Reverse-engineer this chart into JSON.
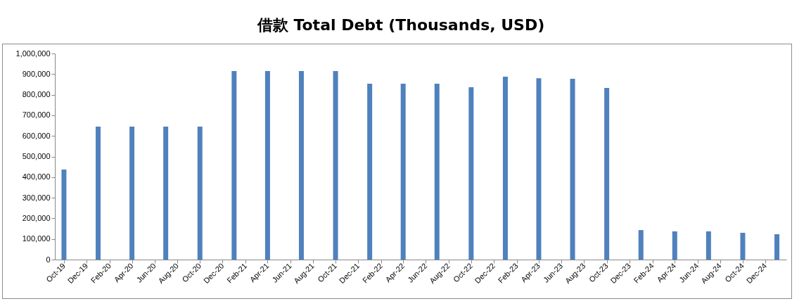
{
  "chart_data": {
    "type": "bar",
    "title": "借款 Total Debt (Thousands, USD)",
    "x": [
      "2019-10",
      "2020-01",
      "2020-04",
      "2020-07",
      "2020-10",
      "2021-01",
      "2021-04",
      "2021-07",
      "2021-10",
      "2022-01",
      "2022-04",
      "2022-07",
      "2022-10",
      "2023-01",
      "2023-04",
      "2023-07",
      "2023-10",
      "2024-01",
      "2024-04",
      "2024-07",
      "2024-10",
      "2025-01"
    ],
    "values": [
      437000,
      645000,
      645000,
      645000,
      645000,
      915000,
      915000,
      915000,
      915000,
      853000,
      853000,
      853000,
      836000,
      887000,
      880000,
      877000,
      833000,
      143000,
      137000,
      137000,
      130000,
      123000
    ],
    "color": "#4f81bd",
    "xlim": [
      "2019-09-16",
      "2025-01-17"
    ],
    "xticks": [
      {
        "value": "2019-10",
        "label": "Oct-19"
      },
      {
        "value": "2019-12",
        "label": "Dec-19"
      },
      {
        "value": "2020-02",
        "label": "Feb-20"
      },
      {
        "value": "2020-04",
        "label": "Apr-20"
      },
      {
        "value": "2020-06",
        "label": "Jun-20"
      },
      {
        "value": "2020-08",
        "label": "Aug-20"
      },
      {
        "value": "2020-10",
        "label": "Oct-20"
      },
      {
        "value": "2020-12",
        "label": "Dec-20"
      },
      {
        "value": "2021-02",
        "label": "Feb-21"
      },
      {
        "value": "2021-04",
        "label": "Apr-21"
      },
      {
        "value": "2021-06",
        "label": "Jun-21"
      },
      {
        "value": "2021-08",
        "label": "Aug-21"
      },
      {
        "value": "2021-10",
        "label": "Oct-21"
      },
      {
        "value": "2021-12",
        "label": "Dec-21"
      },
      {
        "value": "2022-02",
        "label": "Feb-22"
      },
      {
        "value": "2022-04",
        "label": "Apr-22"
      },
      {
        "value": "2022-06",
        "label": "Jun-22"
      },
      {
        "value": "2022-08",
        "label": "Aug-22"
      },
      {
        "value": "2022-10",
        "label": "Oct-22"
      },
      {
        "value": "2022-12",
        "label": "Dec-22"
      },
      {
        "value": "2023-02",
        "label": "Feb-23"
      },
      {
        "value": "2023-04",
        "label": "Apr-23"
      },
      {
        "value": "2023-06",
        "label": "Jun-23"
      },
      {
        "value": "2023-08",
        "label": "Aug-23"
      },
      {
        "value": "2023-10",
        "label": "Oct-23"
      },
      {
        "value": "2023-12",
        "label": "Dec-23"
      },
      {
        "value": "2024-02",
        "label": "Feb-24"
      },
      {
        "value": "2024-04",
        "label": "Apr-24"
      },
      {
        "value": "2024-06",
        "label": "Jun-24"
      },
      {
        "value": "2024-08",
        "label": "Aug-24"
      },
      {
        "value": "2024-10",
        "label": "Oct-24"
      },
      {
        "value": "2024-12",
        "label": "Dec-24"
      }
    ],
    "ylim": [
      0,
      1000000
    ],
    "yticks": [
      0,
      {
        "value": 100000,
        "label": "100,000"
      },
      {
        "value": 200000,
        "label": "200,000"
      },
      {
        "value": 300000,
        "label": "300,000"
      },
      {
        "value": 400000,
        "label": "400,000"
      },
      {
        "value": 500000,
        "label": "500,000"
      },
      {
        "value": 600000,
        "label": "600,000"
      },
      {
        "value": 700000,
        "label": "700,000"
      },
      {
        "value": 800000,
        "label": "800,000"
      },
      {
        "value": 900000,
        "label": "900,000"
      },
      {
        "value": 1000000,
        "label": "1,000,000"
      }
    ]
  }
}
